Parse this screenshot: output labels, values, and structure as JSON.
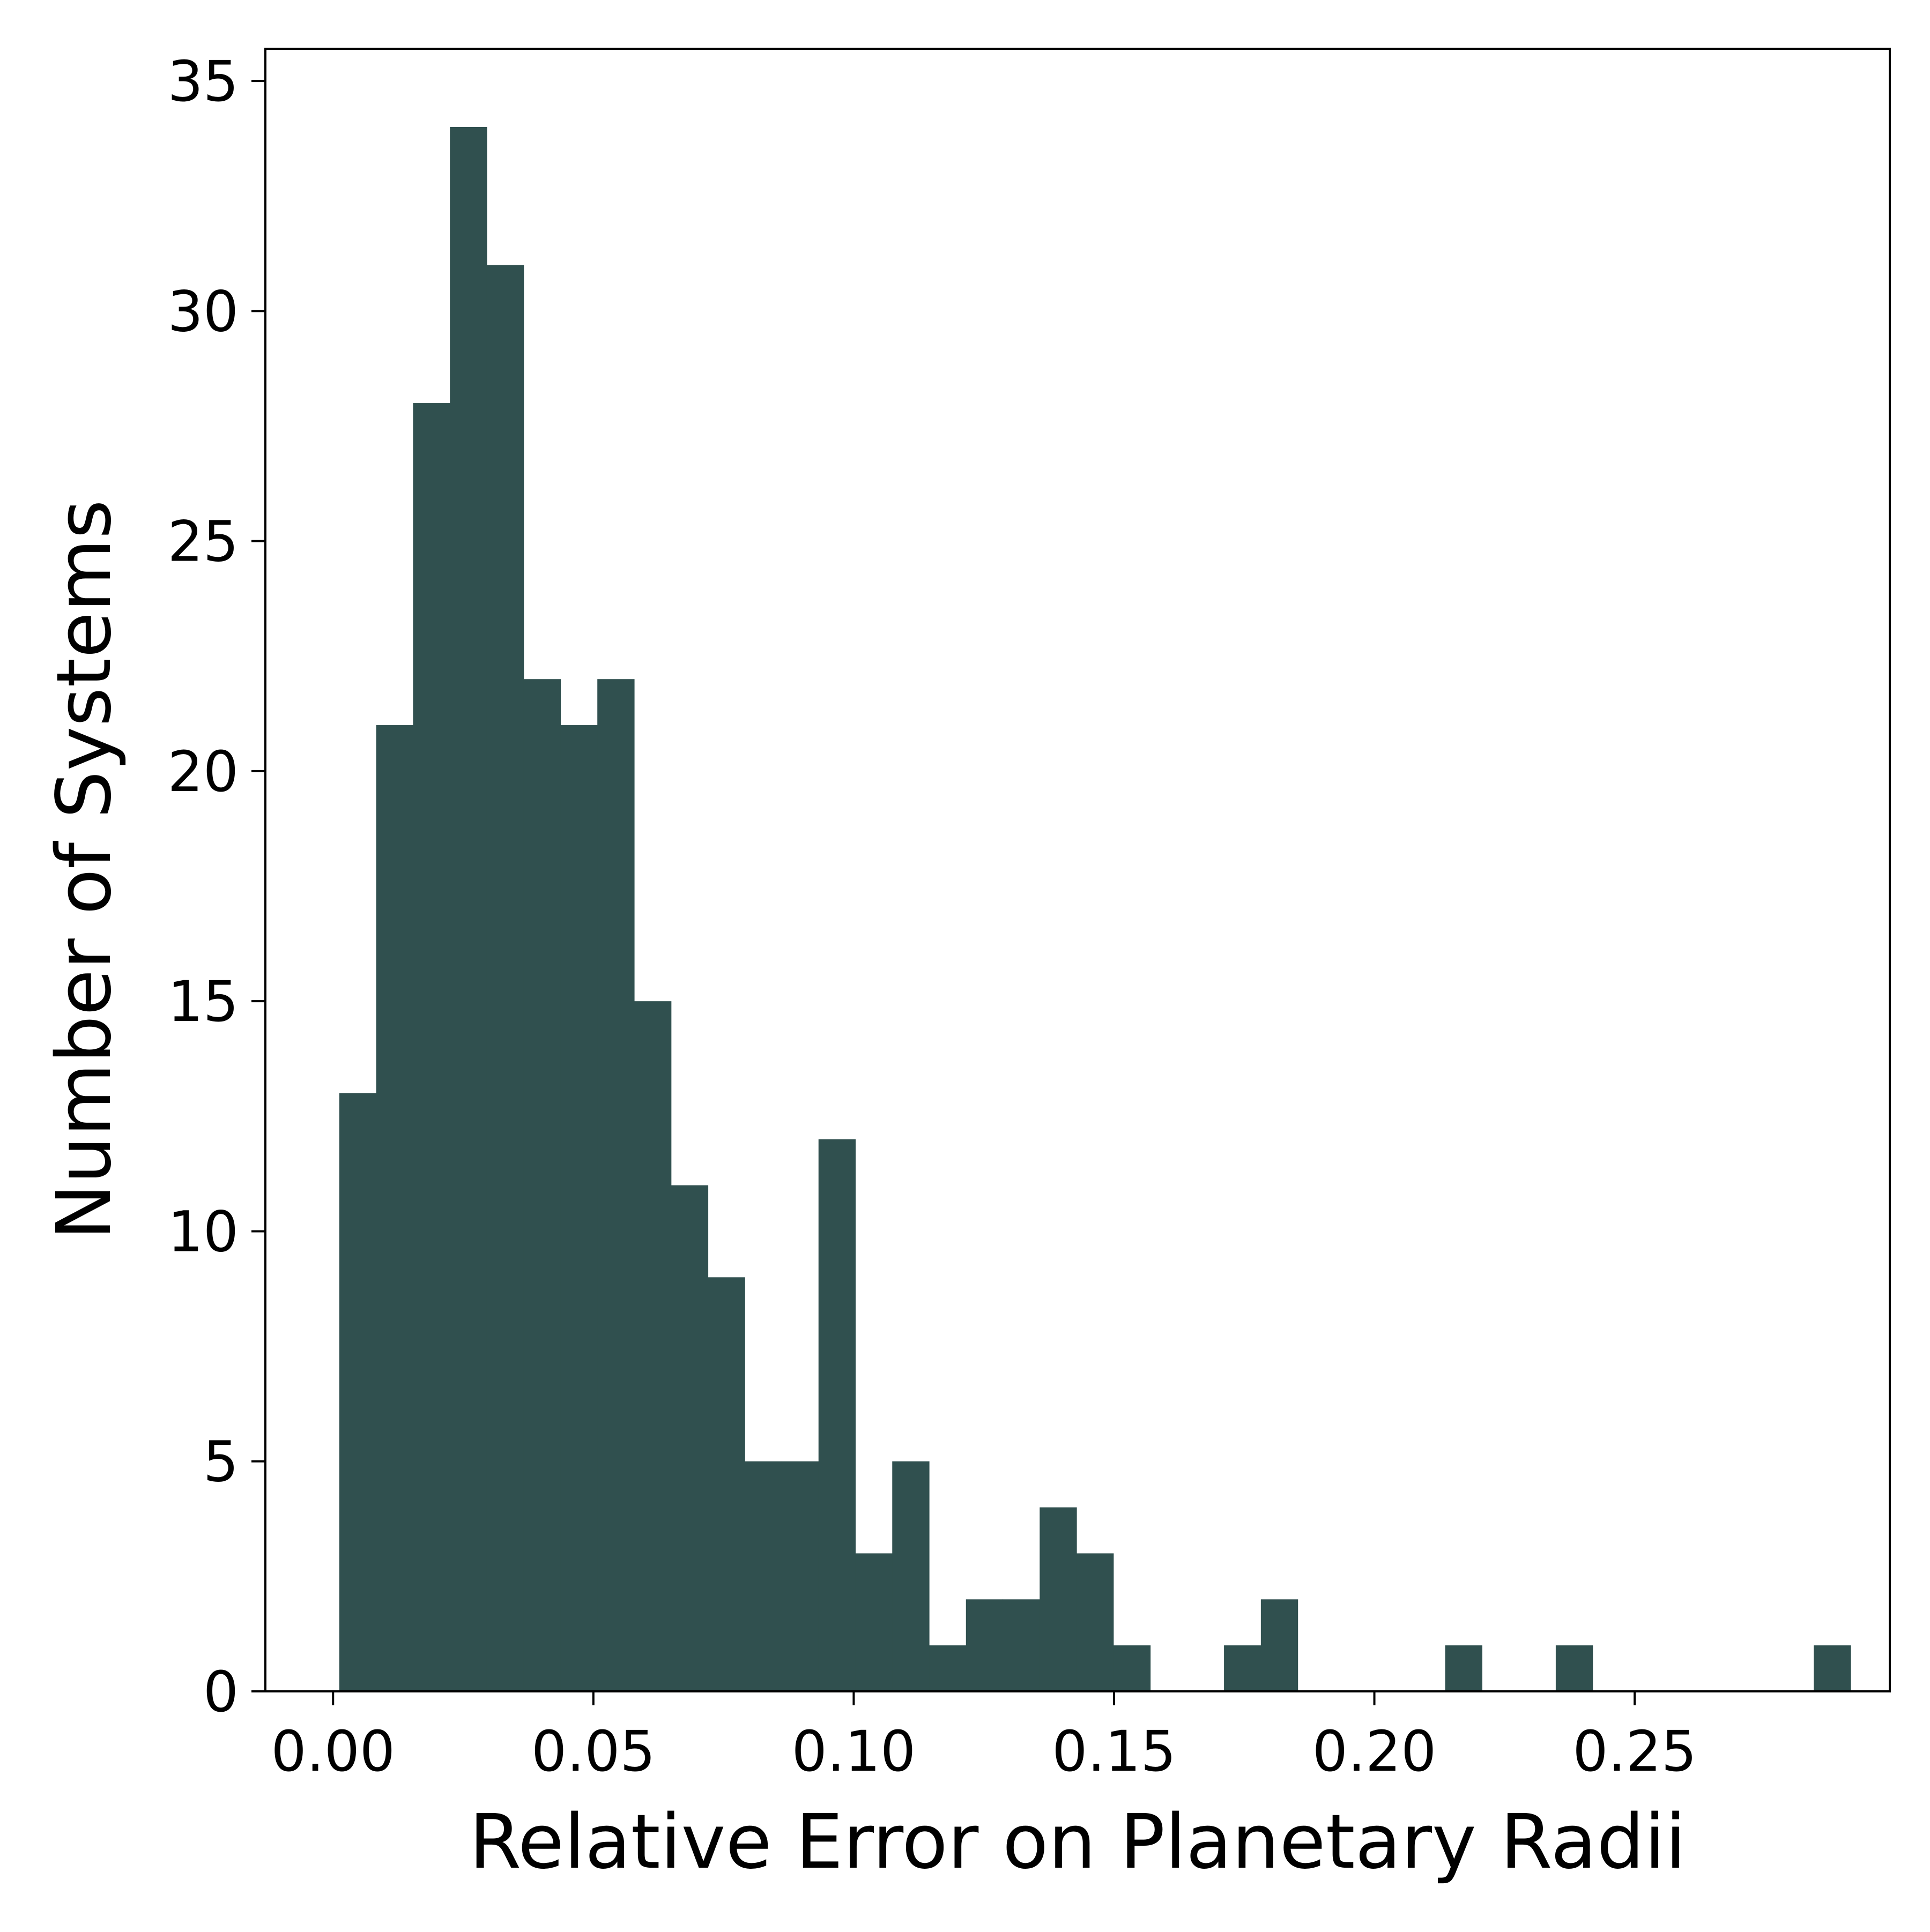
{
  "chart_data": {
    "type": "bar",
    "subtype": "histogram",
    "title": "",
    "xlabel": "Relative Error on Planetary Radii",
    "ylabel": "Number of Systems",
    "xlim": [
      -0.013,
      0.299
    ],
    "ylim": [
      0,
      35.7
    ],
    "xticks": [
      {
        "value": 0.0,
        "label": "0.00"
      },
      {
        "value": 0.05,
        "label": "0.05"
      },
      {
        "value": 0.1,
        "label": "0.10"
      },
      {
        "value": 0.15,
        "label": "0.15"
      },
      {
        "value": 0.2,
        "label": "0.20"
      },
      {
        "value": 0.25,
        "label": "0.25"
      }
    ],
    "yticks": [
      {
        "value": 0,
        "label": "0"
      },
      {
        "value": 5,
        "label": "5"
      },
      {
        "value": 10,
        "label": "10"
      },
      {
        "value": 15,
        "label": "15"
      },
      {
        "value": 20,
        "label": "20"
      },
      {
        "value": 25,
        "label": "25"
      },
      {
        "value": 30,
        "label": "30"
      },
      {
        "value": 35,
        "label": "35"
      }
    ],
    "bin_start": 0.0012,
    "bin_width": 0.00708,
    "counts": [
      13,
      21,
      28,
      34,
      31,
      22,
      21,
      22,
      15,
      11,
      9,
      5,
      5,
      12,
      3,
      5,
      1,
      2,
      2,
      4,
      3,
      1,
      0,
      0,
      1,
      2,
      0,
      0,
      0,
      0,
      1,
      0,
      0,
      1,
      0,
      0,
      0,
      0,
      0,
      0,
      1
    ],
    "bar_color": "#30504f",
    "grid": false,
    "legend": "none"
  }
}
